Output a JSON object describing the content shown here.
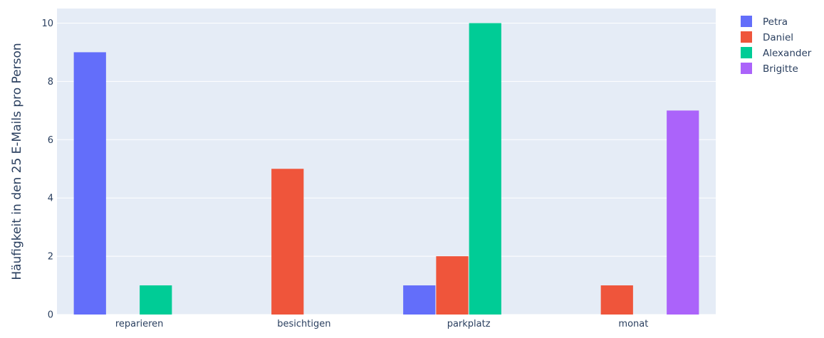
{
  "chart_data": {
    "type": "bar",
    "barmode": "group",
    "title": "",
    "xlabel": "",
    "ylabel": "Häufigkeit in den 25 E-Mails pro Person",
    "categories": [
      "reparieren",
      "besichtigen",
      "parkplatz",
      "monat"
    ],
    "ylim": [
      0,
      10.5
    ],
    "yticks": [
      0,
      2,
      4,
      6,
      8,
      10
    ],
    "grid": true,
    "legend_position": "right",
    "plot_background": "#e5ecf6",
    "series": [
      {
        "name": "Petra",
        "color": "#636efa",
        "values": [
          9,
          0,
          1,
          0
        ]
      },
      {
        "name": "Daniel",
        "color": "#ef553b",
        "values": [
          0,
          5,
          2,
          1
        ]
      },
      {
        "name": "Alexander",
        "color": "#00cc96",
        "values": [
          1,
          0,
          10,
          0
        ]
      },
      {
        "name": "Brigitte",
        "color": "#ab63fa",
        "values": [
          0,
          0,
          0,
          7
        ]
      }
    ]
  }
}
